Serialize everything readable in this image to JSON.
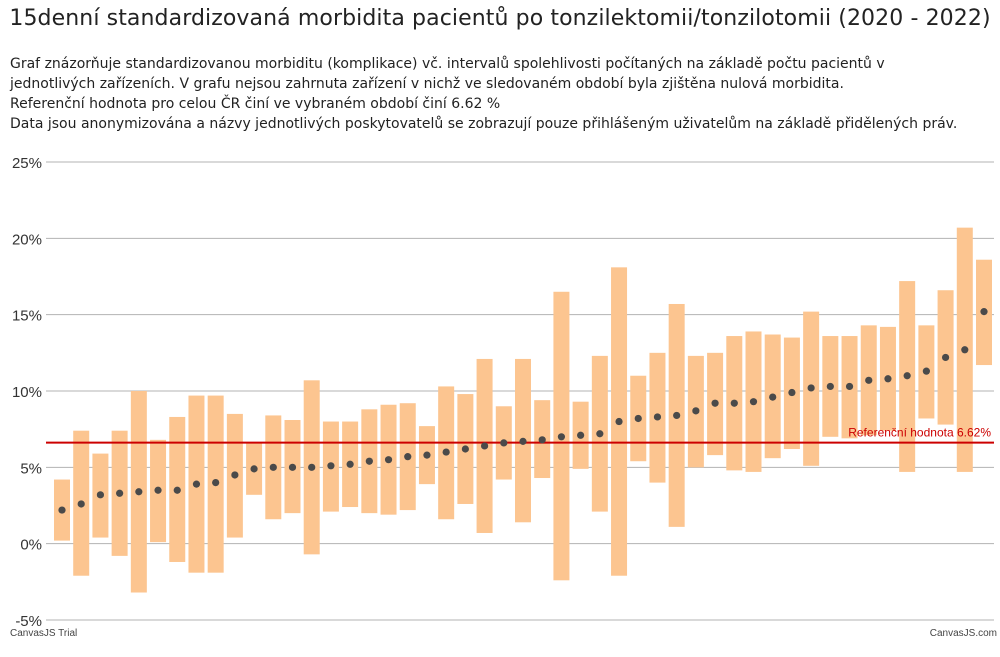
{
  "page": {
    "title": "15denní standardizovaná morbidita pacientů po tonzilektomii/tonzilotomii (2020 - 2022)",
    "description": [
      "Graf znázorňuje standardizovanou morbiditu (komplikace) vč. intervalů spolehlivosti počítaných na základě počtu pacientů v jednotlivých zařízeních. V grafu nejsou zahrnuta zařízení v nichž ve sledovaném období byla zjištěna nulová morbidita.",
      "Referenční hodnota pro celou ČR činí ve vybraném období činí 6.62 %",
      "Data jsou anonymizována a názvy jednotlivých poskytovatelů se zobrazují pouze přihlášeným uživatelům na základě přidělených práv."
    ]
  },
  "credits": {
    "left": "CanvasJS Trial",
    "right": "CanvasJS.com"
  },
  "colors": {
    "range_bar": "#fcc590",
    "point": "#4a4a4a",
    "reference_line": "#cc0000",
    "grid": "#b3b3b3"
  },
  "chart_data": {
    "type": "range_bar_with_points",
    "y_axis": {
      "min": -5,
      "max": 25,
      "interval": 5,
      "suffix": "%",
      "tick_labels": [
        "-5%",
        "0%",
        "5%",
        "10%",
        "15%",
        "20%",
        "25%"
      ]
    },
    "grid": true,
    "reference_line": {
      "value": 6.62,
      "label": "Referenční hodnota 6.62%"
    },
    "facilities": [
      {
        "value": 2.2,
        "low": 0.2,
        "high": 4.2
      },
      {
        "value": 2.6,
        "low": -2.1,
        "high": 7.4
      },
      {
        "value": 3.2,
        "low": 0.4,
        "high": 5.9
      },
      {
        "value": 3.3,
        "low": -0.8,
        "high": 7.4
      },
      {
        "value": 3.4,
        "low": -3.2,
        "high": 10.0
      },
      {
        "value": 3.5,
        "low": 0.1,
        "high": 6.8
      },
      {
        "value": 3.5,
        "low": -1.2,
        "high": 8.3
      },
      {
        "value": 3.9,
        "low": -1.9,
        "high": 9.7
      },
      {
        "value": 4.0,
        "low": -1.9,
        "high": 9.7
      },
      {
        "value": 4.5,
        "low": 0.4,
        "high": 8.5
      },
      {
        "value": 4.9,
        "low": 3.2,
        "high": 6.6
      },
      {
        "value": 5.0,
        "low": 1.6,
        "high": 8.4
      },
      {
        "value": 5.0,
        "low": 2.0,
        "high": 8.1
      },
      {
        "value": 5.0,
        "low": -0.7,
        "high": 10.7
      },
      {
        "value": 5.1,
        "low": 2.1,
        "high": 8.0
      },
      {
        "value": 5.2,
        "low": 2.4,
        "high": 8.0
      },
      {
        "value": 5.4,
        "low": 2.0,
        "high": 8.8
      },
      {
        "value": 5.5,
        "low": 1.9,
        "high": 9.1
      },
      {
        "value": 5.7,
        "low": 2.2,
        "high": 9.2
      },
      {
        "value": 5.8,
        "low": 3.9,
        "high": 7.7
      },
      {
        "value": 6.0,
        "low": 1.6,
        "high": 10.3
      },
      {
        "value": 6.2,
        "low": 2.6,
        "high": 9.8
      },
      {
        "value": 6.4,
        "low": 0.7,
        "high": 12.1
      },
      {
        "value": 6.6,
        "low": 4.2,
        "high": 9.0
      },
      {
        "value": 6.7,
        "low": 1.4,
        "high": 12.1
      },
      {
        "value": 6.8,
        "low": 4.3,
        "high": 9.4
      },
      {
        "value": 7.0,
        "low": -2.4,
        "high": 16.5
      },
      {
        "value": 7.1,
        "low": 4.9,
        "high": 9.3
      },
      {
        "value": 7.2,
        "low": 2.1,
        "high": 12.3
      },
      {
        "value": 8.0,
        "low": -2.1,
        "high": 18.1
      },
      {
        "value": 8.2,
        "low": 5.4,
        "high": 11.0
      },
      {
        "value": 8.3,
        "low": 4.0,
        "high": 12.5
      },
      {
        "value": 8.4,
        "low": 1.1,
        "high": 15.7
      },
      {
        "value": 8.7,
        "low": 5.0,
        "high": 12.3
      },
      {
        "value": 9.2,
        "low": 5.8,
        "high": 12.5
      },
      {
        "value": 9.2,
        "low": 4.8,
        "high": 13.6
      },
      {
        "value": 9.3,
        "low": 4.7,
        "high": 13.9
      },
      {
        "value": 9.6,
        "low": 5.6,
        "high": 13.7
      },
      {
        "value": 9.9,
        "low": 6.2,
        "high": 13.5
      },
      {
        "value": 10.2,
        "low": 5.1,
        "high": 15.2
      },
      {
        "value": 10.3,
        "low": 7.0,
        "high": 13.6
      },
      {
        "value": 10.3,
        "low": 6.9,
        "high": 13.6
      },
      {
        "value": 10.7,
        "low": 7.1,
        "high": 14.3
      },
      {
        "value": 10.8,
        "low": 7.4,
        "high": 14.2
      },
      {
        "value": 11.0,
        "low": 4.7,
        "high": 17.2
      },
      {
        "value": 11.3,
        "low": 8.2,
        "high": 14.3
      },
      {
        "value": 12.2,
        "low": 7.8,
        "high": 16.6
      },
      {
        "value": 12.7,
        "low": 4.7,
        "high": 20.7
      },
      {
        "value": 15.2,
        "low": 11.7,
        "high": 18.6
      }
    ]
  }
}
